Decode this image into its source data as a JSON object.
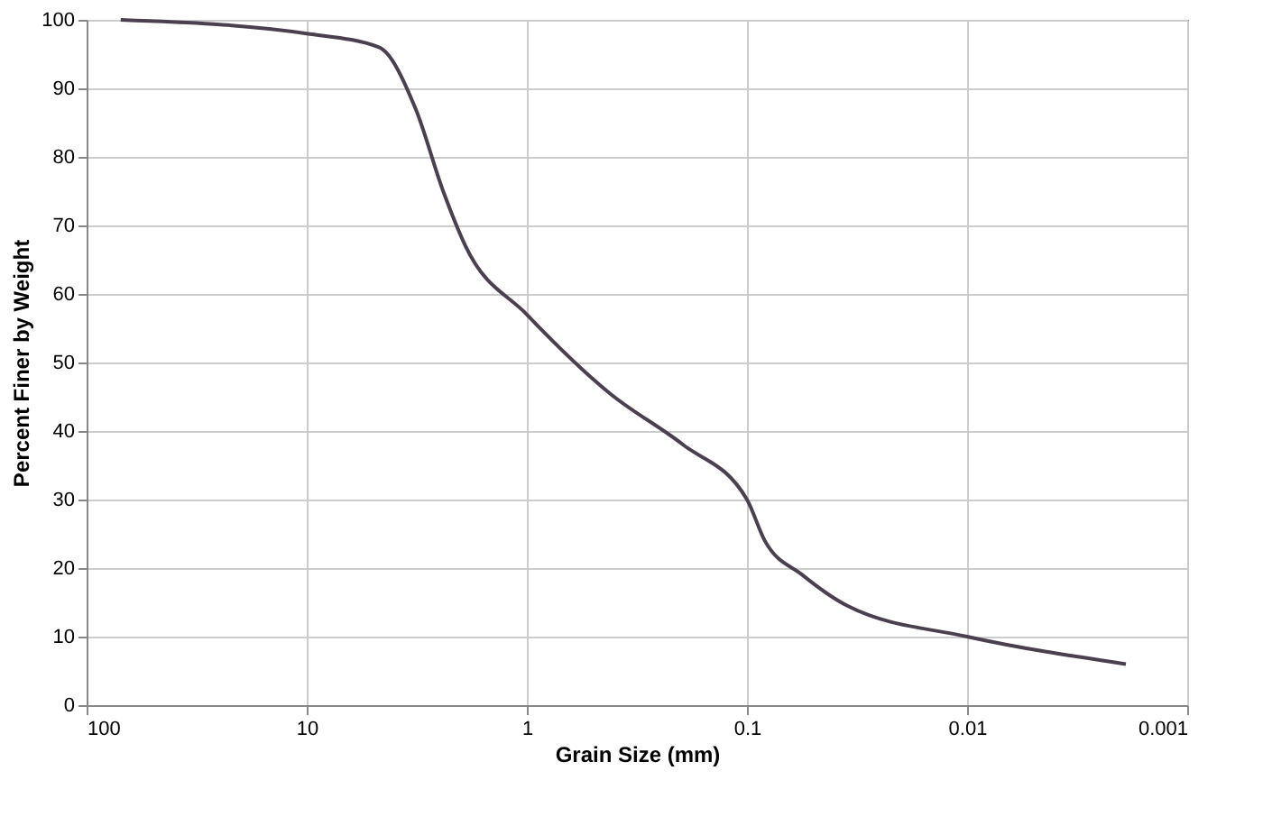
{
  "chart_data": {
    "type": "line",
    "xlabel": "Grain Size (mm)",
    "ylabel": "Percent Finer by Weight",
    "log": "x",
    "xlim": [
      100,
      0.001
    ],
    "xticks": [
      100,
      10,
      1,
      0.1,
      0.01,
      0.001
    ],
    "ylim": [
      0,
      100
    ],
    "yticks": [
      0,
      10,
      20,
      30,
      40,
      50,
      60,
      70,
      80,
      90,
      100
    ],
    "grid": true,
    "line_style": "solid",
    "series": [
      {
        "color": "#4a4050",
        "x": [
          70,
          10,
          4.7,
          3.2,
          2.4,
          1.9,
          1,
          0.42,
          0.195,
          0.1,
          0.083,
          0.056,
          0.035,
          0.01,
          0.0019
        ],
        "values": [
          100,
          98,
          96,
          87,
          75,
          67,
          57,
          45.5,
          38,
          30,
          24,
          19,
          14.5,
          10,
          6
        ]
      }
    ]
  }
}
